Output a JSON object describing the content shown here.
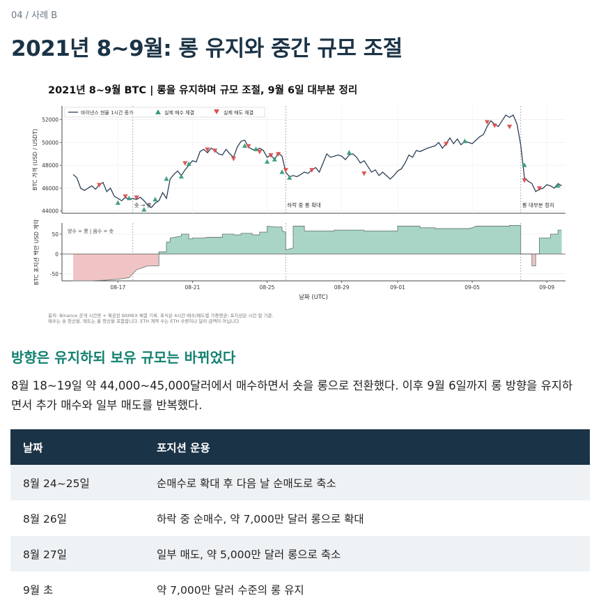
{
  "header": {
    "eyebrow": "04 / 사례 B",
    "title": "2021년 8~9월: 롱 유지와 중간 규모 조절"
  },
  "chart_data": {
    "type": "line",
    "title": "2021년 8~9월 BTC | 롱을 유지하며 규모 조절, 9월 6일 대부분 정리",
    "xlabel": "날짜 (UTC)",
    "x_ticks": [
      "08-17",
      "08-21",
      "08-25",
      "08-29",
      "09-01",
      "09-05",
      "09-09"
    ],
    "x_tick_days": [
      3,
      7,
      11,
      15,
      18,
      22,
      26
    ],
    "x_range_days": [
      0,
      27
    ],
    "price_panel": {
      "ylabel": "BTC 가격 (USD / USDT)",
      "ylim": [
        43800,
        53200
      ],
      "yticks": [
        44000,
        46000,
        48000,
        50000,
        52000
      ],
      "ytick_labels": [
        "44000",
        "46000",
        "48000",
        "50000",
        "52000"
      ],
      "legend": {
        "line": "바이낸스 현물 1시간 종가",
        "buy": "실제 매수 체결",
        "sell": "실제 매도 체결"
      },
      "line_color": "#2c3e55",
      "buy_color": "#3a9c7b",
      "sell_color": "#d9504f",
      "price": [
        [
          0.6,
          47200
        ],
        [
          0.8,
          46900
        ],
        [
          1.0,
          46000
        ],
        [
          1.2,
          45800
        ],
        [
          1.4,
          46000
        ],
        [
          1.6,
          46200
        ],
        [
          1.8,
          45900
        ],
        [
          2.0,
          46300
        ],
        [
          2.2,
          46500
        ],
        [
          2.4,
          45700
        ],
        [
          2.6,
          46000
        ],
        [
          2.8,
          45300
        ],
        [
          3.0,
          45100
        ],
        [
          3.2,
          44900
        ],
        [
          3.4,
          45200
        ],
        [
          3.6,
          45000
        ],
        [
          3.8,
          45100
        ],
        [
          4.0,
          45000
        ],
        [
          4.2,
          45200
        ],
        [
          4.4,
          44900
        ],
        [
          4.6,
          44500
        ],
        [
          4.8,
          44300
        ],
        [
          5.0,
          44700
        ],
        [
          5.2,
          44900
        ],
        [
          5.4,
          45600
        ],
        [
          5.6,
          45100
        ],
        [
          5.8,
          46800
        ],
        [
          6.0,
          47200
        ],
        [
          6.2,
          47500
        ],
        [
          6.4,
          47100
        ],
        [
          6.6,
          47600
        ],
        [
          6.8,
          48000
        ],
        [
          7.0,
          48400
        ],
        [
          7.2,
          48300
        ],
        [
          7.4,
          49200
        ],
        [
          7.6,
          49400
        ],
        [
          7.8,
          49100
        ],
        [
          8.0,
          49500
        ],
        [
          8.2,
          49300
        ],
        [
          8.4,
          49000
        ],
        [
          8.6,
          48900
        ],
        [
          8.8,
          49400
        ],
        [
          9.0,
          49000
        ],
        [
          9.2,
          48700
        ],
        [
          9.4,
          49600
        ],
        [
          9.6,
          50100
        ],
        [
          9.8,
          50200
        ],
        [
          10.0,
          49600
        ],
        [
          10.2,
          49400
        ],
        [
          10.4,
          49300
        ],
        [
          10.6,
          49500
        ],
        [
          10.8,
          49300
        ],
        [
          11.0,
          48700
        ],
        [
          11.2,
          48900
        ],
        [
          11.4,
          48500
        ],
        [
          11.6,
          49100
        ],
        [
          11.8,
          48800
        ],
        [
          12.0,
          47400
        ],
        [
          12.2,
          47000
        ],
        [
          12.4,
          47100
        ],
        [
          12.6,
          47000
        ],
        [
          12.8,
          47200
        ],
        [
          13.0,
          47400
        ],
        [
          13.2,
          47300
        ],
        [
          13.4,
          47600
        ],
        [
          13.6,
          47800
        ],
        [
          13.8,
          47400
        ],
        [
          14.0,
          48200
        ],
        [
          14.2,
          49000
        ],
        [
          14.4,
          48700
        ],
        [
          14.6,
          48800
        ],
        [
          14.8,
          48900
        ],
        [
          15.0,
          48800
        ],
        [
          15.2,
          48500
        ],
        [
          15.4,
          48900
        ],
        [
          15.6,
          49000
        ],
        [
          15.8,
          48700
        ],
        [
          16.0,
          48200
        ],
        [
          16.2,
          48400
        ],
        [
          16.4,
          47900
        ],
        [
          16.6,
          47400
        ],
        [
          16.8,
          47600
        ],
        [
          17.0,
          47100
        ],
        [
          17.2,
          47400
        ],
        [
          17.4,
          47100
        ],
        [
          17.6,
          46800
        ],
        [
          17.8,
          47100
        ],
        [
          18.0,
          47500
        ],
        [
          18.2,
          47700
        ],
        [
          18.4,
          48200
        ],
        [
          18.6,
          48900
        ],
        [
          18.8,
          48700
        ],
        [
          19.0,
          49300
        ],
        [
          19.2,
          49200
        ],
        [
          19.6,
          49500
        ],
        [
          20.0,
          49700
        ],
        [
          20.2,
          50000
        ],
        [
          20.4,
          49500
        ],
        [
          20.6,
          49900
        ],
        [
          20.8,
          50400
        ],
        [
          21.0,
          49900
        ],
        [
          21.2,
          50300
        ],
        [
          21.4,
          49800
        ],
        [
          21.6,
          50100
        ],
        [
          21.8,
          50000
        ],
        [
          22.0,
          49900
        ],
        [
          22.2,
          50200
        ],
        [
          22.4,
          50500
        ],
        [
          22.6,
          50700
        ],
        [
          22.8,
          51400
        ],
        [
          23.0,
          51900
        ],
        [
          23.2,
          51600
        ],
        [
          23.4,
          51400
        ],
        [
          23.6,
          51900
        ],
        [
          23.8,
          52400
        ],
        [
          24.0,
          52200
        ],
        [
          24.2,
          52400
        ],
        [
          24.4,
          51600
        ],
        [
          24.6,
          49800
        ],
        [
          24.8,
          46900
        ],
        [
          25.0,
          46600
        ],
        [
          25.2,
          46400
        ],
        [
          25.4,
          45700
        ],
        [
          25.6,
          45900
        ],
        [
          25.8,
          46000
        ],
        [
          26.0,
          46300
        ],
        [
          26.2,
          46200
        ],
        [
          26.4,
          46000
        ],
        [
          26.6,
          46400
        ],
        [
          26.8,
          46200
        ]
      ],
      "buys": [
        [
          3.0,
          44700
        ],
        [
          3.6,
          45100
        ],
        [
          4.4,
          44100
        ],
        [
          5.0,
          45000
        ],
        [
          5.6,
          46800
        ],
        [
          6.4,
          47000
        ],
        [
          6.8,
          48100
        ],
        [
          9.8,
          49700
        ],
        [
          10.4,
          49400
        ],
        [
          11.0,
          48300
        ],
        [
          11.4,
          48500
        ],
        [
          11.8,
          47400
        ],
        [
          12.2,
          46900
        ],
        [
          15.4,
          49100
        ],
        [
          21.6,
          50100
        ],
        [
          24.8,
          48000
        ],
        [
          26.6,
          46200
        ]
      ],
      "sells": [
        [
          2.0,
          46300
        ],
        [
          3.4,
          45300
        ],
        [
          4.0,
          45200
        ],
        [
          6.6,
          48200
        ],
        [
          7.8,
          49400
        ],
        [
          8.2,
          49300
        ],
        [
          9.2,
          48600
        ],
        [
          10.0,
          49700
        ],
        [
          10.6,
          49200
        ],
        [
          11.2,
          48900
        ],
        [
          11.6,
          49000
        ],
        [
          12.0,
          47600
        ],
        [
          13.4,
          47600
        ],
        [
          16.2,
          47300
        ],
        [
          20.6,
          49900
        ],
        [
          22.8,
          51800
        ],
        [
          23.2,
          51500
        ],
        [
          24.0,
          51400
        ],
        [
          24.8,
          46700
        ],
        [
          25.6,
          46000
        ]
      ],
      "vlines_days": [
        3.8,
        12.0,
        24.6
      ],
      "annotations": [
        {
          "day": 3.8,
          "text": "숏 → 롱"
        },
        {
          "day": 12.0,
          "text": "하락 중 롱 확대"
        },
        {
          "day": 24.6,
          "text": "롱 대부분 정리"
        }
      ]
    },
    "position_panel": {
      "ylabel": "BTC 포지션 백만 USD 계약",
      "ylim": [
        -68,
        78
      ],
      "yticks": [
        -50,
        0,
        50
      ],
      "ytick_labels": [
        "-50",
        "0",
        "50"
      ],
      "note": "양수 = 롱 | 음수 = 숏",
      "long_color": "#a8d5c6",
      "short_color": "#f0c4c4",
      "steps": [
        [
          0.6,
          -68
        ],
        [
          1.6,
          -68
        ],
        [
          1.6,
          -68
        ],
        [
          2.4,
          -66
        ],
        [
          3.0,
          -64
        ],
        [
          3.6,
          -60
        ],
        [
          4.0,
          -40
        ],
        [
          4.6,
          -30
        ],
        [
          5.2,
          -30
        ],
        [
          5.2,
          5
        ],
        [
          5.6,
          5
        ],
        [
          5.6,
          30
        ],
        [
          5.8,
          30
        ],
        [
          5.8,
          40
        ],
        [
          6.4,
          45
        ],
        [
          6.4,
          50
        ],
        [
          6.8,
          50
        ],
        [
          6.8,
          38
        ],
        [
          7.0,
          38
        ],
        [
          7.0,
          40
        ],
        [
          7.6,
          40
        ],
        [
          7.8,
          42
        ],
        [
          8.6,
          42
        ],
        [
          8.6,
          50
        ],
        [
          9.2,
          50
        ],
        [
          9.2,
          48
        ],
        [
          9.6,
          48
        ],
        [
          9.6,
          52
        ],
        [
          10.2,
          52
        ],
        [
          10.2,
          48
        ],
        [
          10.6,
          48
        ],
        [
          10.6,
          55
        ],
        [
          11.0,
          55
        ],
        [
          11.0,
          70
        ],
        [
          11.4,
          68
        ],
        [
          11.8,
          68
        ],
        [
          11.8,
          58
        ],
        [
          12.0,
          55
        ],
        [
          12.0,
          10
        ],
        [
          12.4,
          15
        ],
        [
          12.4,
          70
        ],
        [
          13.0,
          70
        ],
        [
          13.0,
          58
        ],
        [
          14.6,
          58
        ],
        [
          14.6,
          60
        ],
        [
          16.2,
          60
        ],
        [
          16.2,
          58
        ],
        [
          18.0,
          58
        ],
        [
          18.0,
          70
        ],
        [
          19.2,
          70
        ],
        [
          19.2,
          66
        ],
        [
          20.0,
          66
        ],
        [
          20.0,
          64
        ],
        [
          21.8,
          64
        ],
        [
          22.0,
          66
        ],
        [
          22.2,
          70
        ],
        [
          24.0,
          70
        ],
        [
          24.0,
          72
        ],
        [
          24.6,
          72
        ],
        [
          24.6,
          0
        ],
        [
          25.2,
          0
        ],
        [
          25.2,
          -30
        ],
        [
          25.4,
          -30
        ],
        [
          25.4,
          0
        ],
        [
          25.6,
          0
        ],
        [
          25.6,
          40
        ],
        [
          26.2,
          40
        ],
        [
          26.2,
          50
        ],
        [
          26.6,
          50
        ],
        [
          26.6,
          60
        ],
        [
          26.8,
          60
        ]
      ]
    },
    "source_note_1": "출처: Binance 공개 시간봉 + 제공된 BitMEX 체결 기록. 표식은 4시간·매수/매도별 가중평균; 포지션은 시간 말 기준.",
    "source_note_2": "매수는 숏 청산을, 매도는 롱 청산을 포함합니다. ETH 계약 수는 ETH 수량이나 달러 금액이 아닙니다."
  },
  "section": {
    "heading": "방향은 유지하되 보유 규모는 바뀌었다",
    "paragraph": "8월 18~19일 약 44,000~45,000달러에서 매수하면서 숏을 롱으로 전환했다. 이후 9월 6일까지 롱 방향을 유지하면서 추가 매수와 일부 매도를 반복했다."
  },
  "table": {
    "headers": [
      "날짜",
      "포지션 운용"
    ],
    "rows": [
      {
        "date": "8월 24~25일",
        "action": "순매수로 확대 후 다음 날 순매도로 축소"
      },
      {
        "date": "8월 26일",
        "action": "하락 중 순매수, 약 7,000만 달러 롱으로 확대"
      },
      {
        "date": "8월 27일",
        "action": "일부 매도, 약 5,000만 달러 롱으로 축소"
      },
      {
        "date": "9월 초",
        "action": "약 7,000만 달러 수준의 롱 유지"
      }
    ]
  }
}
